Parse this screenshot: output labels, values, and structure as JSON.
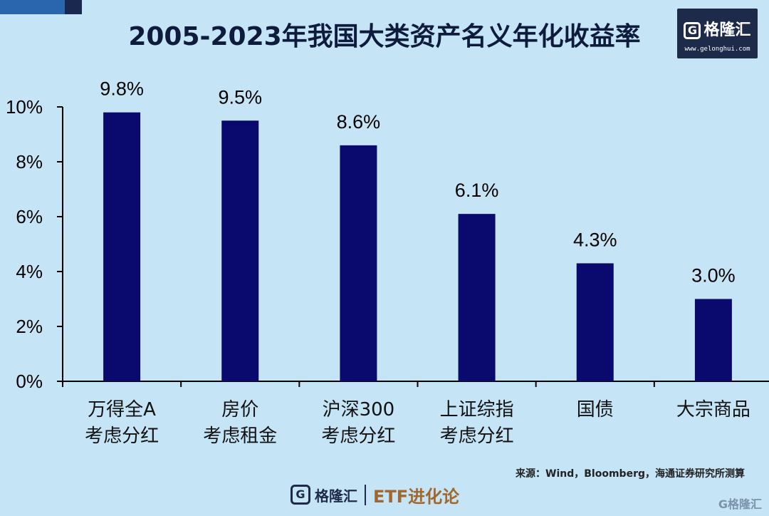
{
  "chart_data": {
    "type": "bar",
    "title": "2005-2023年我国大类资产名义年化收益率",
    "categories": [
      [
        "万得全A",
        "考虑分红"
      ],
      [
        "房价",
        "考虑租金"
      ],
      [
        "沪深300",
        "考虑分红"
      ],
      [
        "上证综指",
        "考虑分红"
      ],
      [
        "国债"
      ],
      [
        "大宗商品"
      ]
    ],
    "values": [
      9.8,
      9.5,
      8.6,
      6.1,
      4.3,
      3.0
    ],
    "value_labels": [
      "9.8%",
      "9.5%",
      "8.6%",
      "6.1%",
      "4.3%",
      "3.0%"
    ],
    "ylim": [
      0,
      10
    ],
    "yticks": [
      0,
      2,
      4,
      6,
      8,
      10
    ],
    "ytick_labels": [
      "0%",
      "2%",
      "4%",
      "6%",
      "8%",
      "10%"
    ],
    "xlabel": "",
    "ylabel": "",
    "bar_color": "#0a0a6e"
  },
  "brand": {
    "name": "格隆汇",
    "url": "www.gelonghui.com",
    "g_letter": "G",
    "column": "ETF进化论",
    "watermark": "G格隆汇"
  },
  "source": "来源：Wind，Bloomberg，海通证券研究所测算",
  "colors": {
    "background": "#c5e4f6",
    "title": "#0f1b3d",
    "axis": "#000000"
  }
}
